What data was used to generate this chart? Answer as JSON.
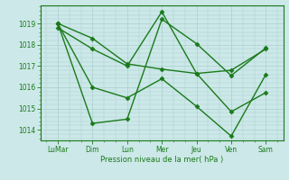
{
  "xlabel": "Pression niveau de la mer( hPa )",
  "x_labels": [
    "LuMar",
    "Dim",
    "Lun",
    "Mer",
    "Jeu",
    "Ven",
    "Sam"
  ],
  "x_positions": [
    0,
    1,
    2,
    3,
    4,
    5,
    6
  ],
  "ylim": [
    1013.5,
    1019.85
  ],
  "yticks": [
    1014,
    1015,
    1016,
    1017,
    1018,
    1019
  ],
  "line_color": "#1a7a1a",
  "bg_color": "#cce8e8",
  "grid_color": "#aacfcf",
  "series": [
    {
      "x": [
        0,
        1,
        2,
        3,
        4,
        5,
        6
      ],
      "y": [
        1019.0,
        1014.3,
        1014.5,
        1019.2,
        1018.05,
        1016.55,
        1017.85
      ]
    },
    {
      "x": [
        0,
        1,
        2,
        3,
        4,
        5,
        6
      ],
      "y": [
        1018.8,
        1017.8,
        1017.0,
        1019.55,
        1016.65,
        1014.85,
        1015.75
      ]
    },
    {
      "x": [
        0,
        1,
        2,
        3,
        4,
        5,
        6
      ],
      "y": [
        1019.0,
        1016.0,
        1015.5,
        1016.4,
        1015.1,
        1013.7,
        1016.6
      ]
    },
    {
      "x": [
        0,
        1,
        2,
        3,
        4,
        5,
        6
      ],
      "y": [
        1019.0,
        1018.3,
        1017.1,
        1016.85,
        1016.65,
        1016.8,
        1017.8
      ]
    }
  ],
  "marker": "D",
  "markersize": 2.5,
  "linewidth": 1.0
}
